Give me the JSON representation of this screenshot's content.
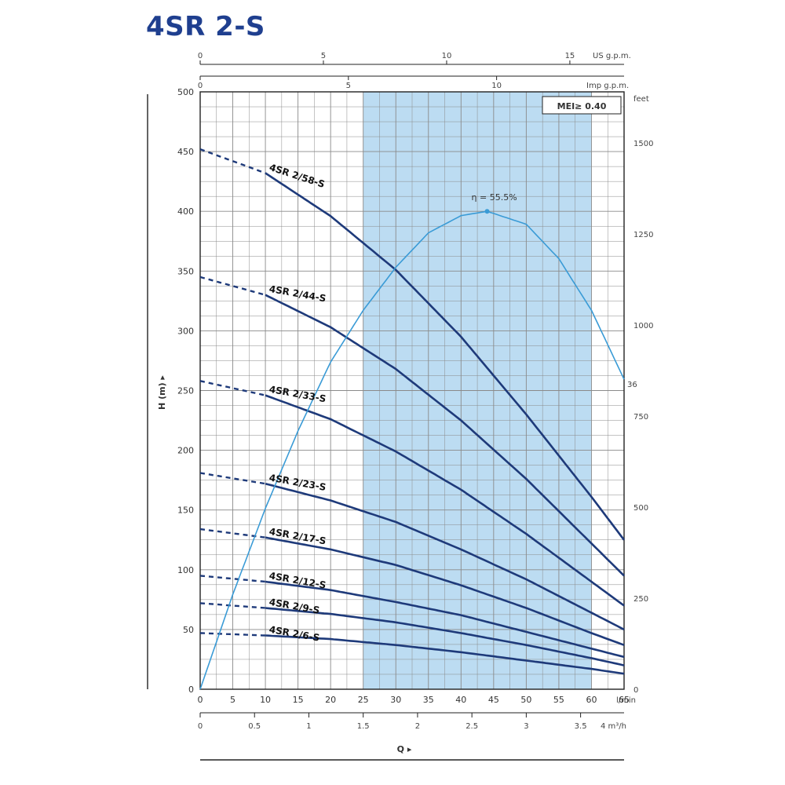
{
  "title": "4SR 2-S",
  "colors": {
    "curve": "#1e3a7a",
    "efficiency": "#3a9bd6",
    "band": "#bcdcf2",
    "grid": "#8a8a8a"
  },
  "chart_data": {
    "type": "line",
    "title": "4SR 2-S",
    "mei_label": "MEI≥ 0.40",
    "xlabel": "Q",
    "ylabel": "H (m)",
    "x_unit_label": "l/min",
    "x_axis_lpm": {
      "range": [
        0,
        65
      ],
      "ticks": [
        0,
        5,
        10,
        15,
        20,
        25,
        30,
        35,
        40,
        45,
        50,
        55,
        60,
        65
      ],
      "unit": "l/min"
    },
    "x_axis_m3h": {
      "range": [
        0,
        3.9
      ],
      "ticks": [
        0,
        0.5,
        1,
        1.5,
        2,
        2.5,
        3,
        3.5
      ],
      "unit": "m³/h",
      "tick_labels": [
        "0",
        "0.5",
        "1",
        "1.5",
        "2",
        "2.5",
        "3",
        "3.5"
      ],
      "end_label": "4 m³/h"
    },
    "x_axis_usgpm": {
      "range": [
        0,
        17.2
      ],
      "ticks": [
        0,
        5,
        10,
        15
      ],
      "unit": "US g.p.m."
    },
    "x_axis_impgpm": {
      "range": [
        0,
        14.3
      ],
      "ticks": [
        0,
        5,
        10
      ],
      "unit": "Imp g.p.m."
    },
    "y_axis_m": {
      "range": [
        0,
        500
      ],
      "ticks": [
        0,
        50,
        100,
        150,
        200,
        250,
        300,
        350,
        400,
        450,
        500
      ]
    },
    "y_axis_ft": {
      "range": [
        0,
        1640
      ],
      "ticks": [
        0,
        250,
        500,
        750,
        1000,
        1250,
        1500
      ],
      "unit": "feet"
    },
    "efficiency_peak_label": "η = 55.5%",
    "efficiency_end_label": "36",
    "band_q": [
      25,
      60
    ],
    "series": [
      {
        "name": "4SR 2/58-S",
        "q": [
          0,
          10,
          20,
          30,
          40,
          50,
          60,
          65
        ],
        "h": [
          452,
          432,
          396,
          351,
          295,
          230,
          161,
          125
        ]
      },
      {
        "name": "4SR 2/44-S",
        "q": [
          0,
          10,
          20,
          30,
          40,
          50,
          60,
          65
        ],
        "h": [
          345,
          330,
          303,
          268,
          225,
          176,
          122,
          95
        ]
      },
      {
        "name": "4SR 2/33-S",
        "q": [
          0,
          10,
          20,
          30,
          40,
          50,
          60,
          65
        ],
        "h": [
          258,
          246,
          226,
          199,
          167,
          130,
          90,
          70
        ]
      },
      {
        "name": "4SR 2/23-S",
        "q": [
          0,
          10,
          20,
          30,
          40,
          50,
          60,
          65
        ],
        "h": [
          181,
          172,
          158,
          140,
          117,
          92,
          64,
          50
        ]
      },
      {
        "name": "4SR 2/17-S",
        "q": [
          0,
          10,
          20,
          30,
          40,
          50,
          60,
          65
        ],
        "h": [
          134,
          127,
          117,
          104,
          87,
          68,
          47,
          37
        ]
      },
      {
        "name": "4SR 2/12-S",
        "q": [
          0,
          10,
          20,
          30,
          40,
          50,
          60,
          65
        ],
        "h": [
          95,
          90,
          83,
          73,
          62,
          48,
          34,
          27
        ]
      },
      {
        "name": "4SR 2/9-S",
        "q": [
          0,
          10,
          20,
          30,
          40,
          50,
          60,
          65
        ],
        "h": [
          72,
          68,
          63,
          56,
          47,
          37,
          26,
          20
        ]
      },
      {
        "name": "4SR 2/6-S",
        "q": [
          0,
          10,
          20,
          30,
          40,
          50,
          60,
          65
        ],
        "h": [
          47,
          45,
          42,
          37,
          31,
          24,
          17,
          13
        ]
      }
    ],
    "efficiency": {
      "q": [
        0,
        5,
        10,
        15,
        20,
        25,
        30,
        35,
        40,
        44,
        50,
        55,
        60,
        65
      ],
      "eff_pct": [
        0,
        11,
        21,
        30,
        38,
        44,
        49,
        53,
        55,
        55.5,
        54,
        50,
        44,
        36
      ]
    }
  }
}
